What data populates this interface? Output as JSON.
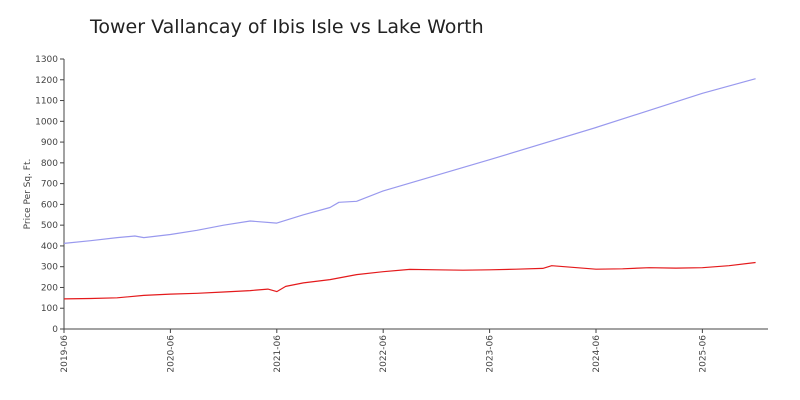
{
  "chart_data": {
    "type": "line",
    "title": "Tower Vallancay of Ibis Isle vs Lake Worth",
    "xlabel": "",
    "ylabel": "Price Per Sq. Ft.",
    "ylim": [
      0,
      1300
    ],
    "yticks": [
      0,
      100,
      200,
      300,
      400,
      500,
      600,
      700,
      800,
      900,
      1000,
      1100,
      1200,
      1300
    ],
    "xticks": [
      "2019-06",
      "2020-06",
      "2021-06",
      "2022-06",
      "2023-06",
      "2024-06",
      "2025-06"
    ],
    "xlim": [
      "2019-06",
      "2025-12"
    ],
    "grid": false,
    "legend": "none",
    "series": [
      {
        "color": "#9999ee",
        "x": [
          "2019-06",
          "2019-09",
          "2019-12",
          "2020-02",
          "2020-03",
          "2020-06",
          "2020-09",
          "2020-12",
          "2021-03",
          "2021-06",
          "2021-09",
          "2021-12",
          "2022-01",
          "2022-03",
          "2022-06",
          "2023-06",
          "2024-06",
          "2025-06",
          "2025-12"
        ],
        "values": [
          412,
          425,
          440,
          448,
          440,
          455,
          475,
          500,
          520,
          510,
          550,
          585,
          610,
          615,
          665,
          815,
          970,
          1135,
          1205
        ]
      },
      {
        "color": "#e41a1c",
        "x": [
          "2019-06",
          "2019-09",
          "2019-12",
          "2020-03",
          "2020-06",
          "2020-09",
          "2020-12",
          "2021-03",
          "2021-05",
          "2021-06",
          "2021-07",
          "2021-09",
          "2021-12",
          "2022-03",
          "2022-06",
          "2022-09",
          "2022-12",
          "2023-03",
          "2023-06",
          "2023-09",
          "2023-12",
          "2024-01",
          "2024-06",
          "2024-09",
          "2024-12",
          "2025-03",
          "2025-06",
          "2025-09",
          "2025-12"
        ],
        "values": [
          145,
          147,
          150,
          162,
          168,
          172,
          178,
          185,
          192,
          180,
          205,
          222,
          238,
          262,
          276,
          287,
          285,
          283,
          285,
          288,
          292,
          305,
          288,
          290,
          295,
          293,
          295,
          305,
          320
        ]
      }
    ]
  }
}
